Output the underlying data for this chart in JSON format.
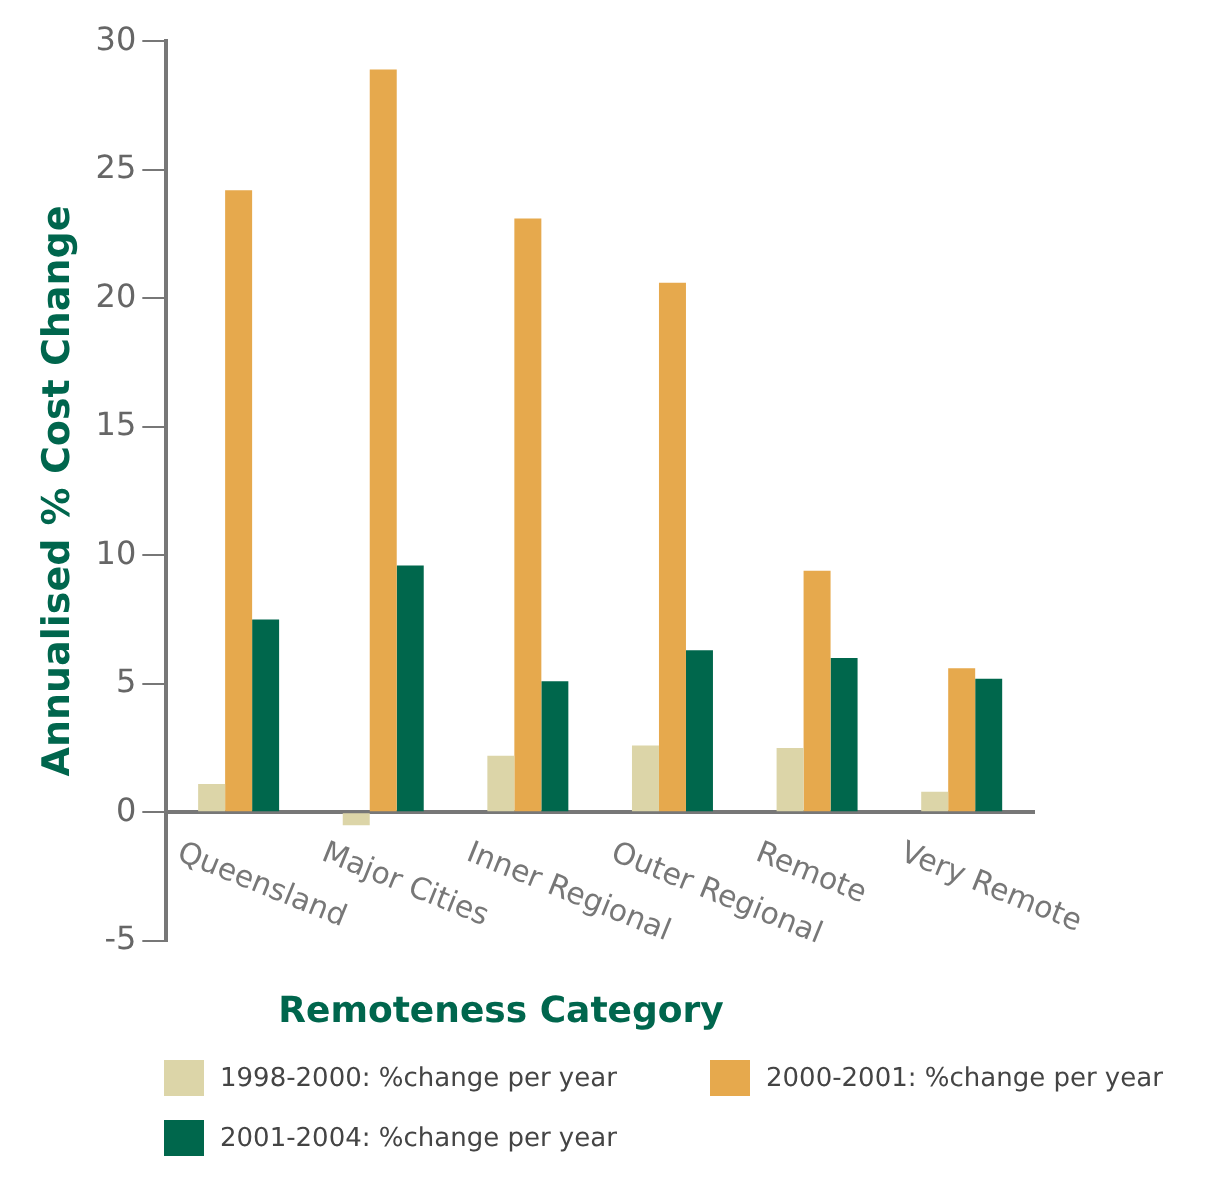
{
  "chart_data": {
    "type": "bar",
    "xlabel": "Remoteness Category",
    "ylabel": "Annualised % Cost Change",
    "categories": [
      "Queensland",
      "Major Cities",
      "Inner Regional",
      "Outer Regional",
      "Remote",
      "Very Remote"
    ],
    "series": [
      {
        "name": "1998-2000: %change per year",
        "color": "#dcd5a8",
        "values": [
          1.1,
          -0.5,
          2.2,
          2.6,
          2.5,
          0.8
        ]
      },
      {
        "name": "2000-2001: %change per year",
        "color": "#e6a94d",
        "values": [
          24.2,
          28.9,
          23.1,
          20.6,
          9.4,
          5.6
        ]
      },
      {
        "name": "2001-2004: %change per year",
        "color": "#00674c",
        "values": [
          7.5,
          9.6,
          5.1,
          6.3,
          6.0,
          5.2
        ]
      }
    ],
    "ylim": [
      -5,
      30
    ],
    "yticks": [
      -5,
      0,
      5,
      10,
      15,
      20,
      25,
      30
    ],
    "grid": false,
    "legend": "bottom"
  }
}
